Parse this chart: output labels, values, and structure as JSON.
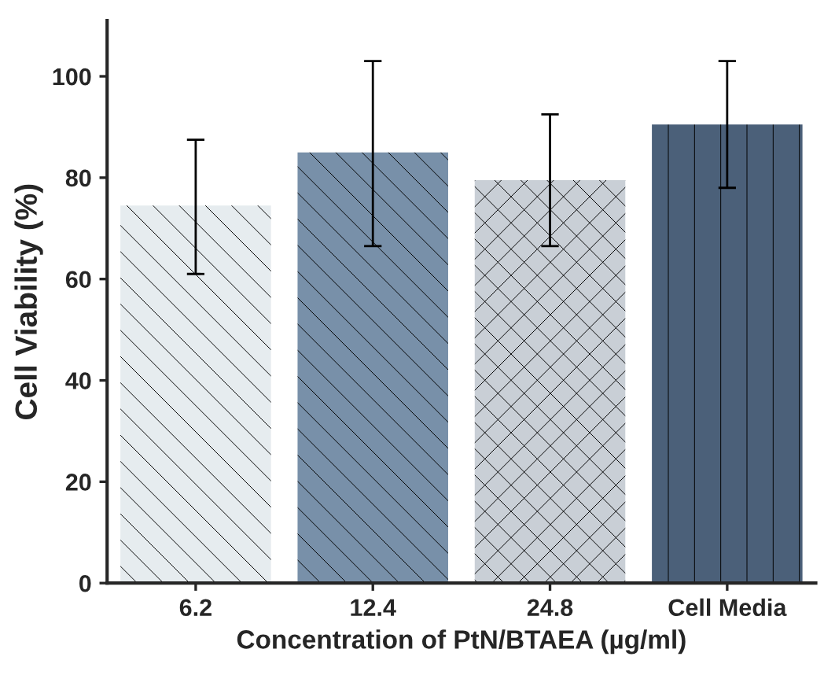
{
  "chart_data": {
    "type": "bar",
    "xlabel": "Concentration of PtN/BTAEA (µg/ml)",
    "ylabel": "Cell Viability (%)",
    "categories": [
      "6.2",
      "12.4",
      "24.8",
      "Cell Media"
    ],
    "values": [
      74.5,
      85,
      79.5,
      90.5
    ],
    "errors": [
      [
        61,
        87.5
      ],
      [
        66.5,
        103
      ],
      [
        66.5,
        92.5
      ],
      [
        78,
        103
      ]
    ],
    "colors": [
      "#e6ecef",
      "#7890a9",
      "#c9cfd6",
      "#4b6079"
    ],
    "ylim": [
      0,
      111
    ],
    "yticks": [
      0,
      20,
      40,
      60,
      80,
      100
    ],
    "grid": false,
    "legend": false
  }
}
